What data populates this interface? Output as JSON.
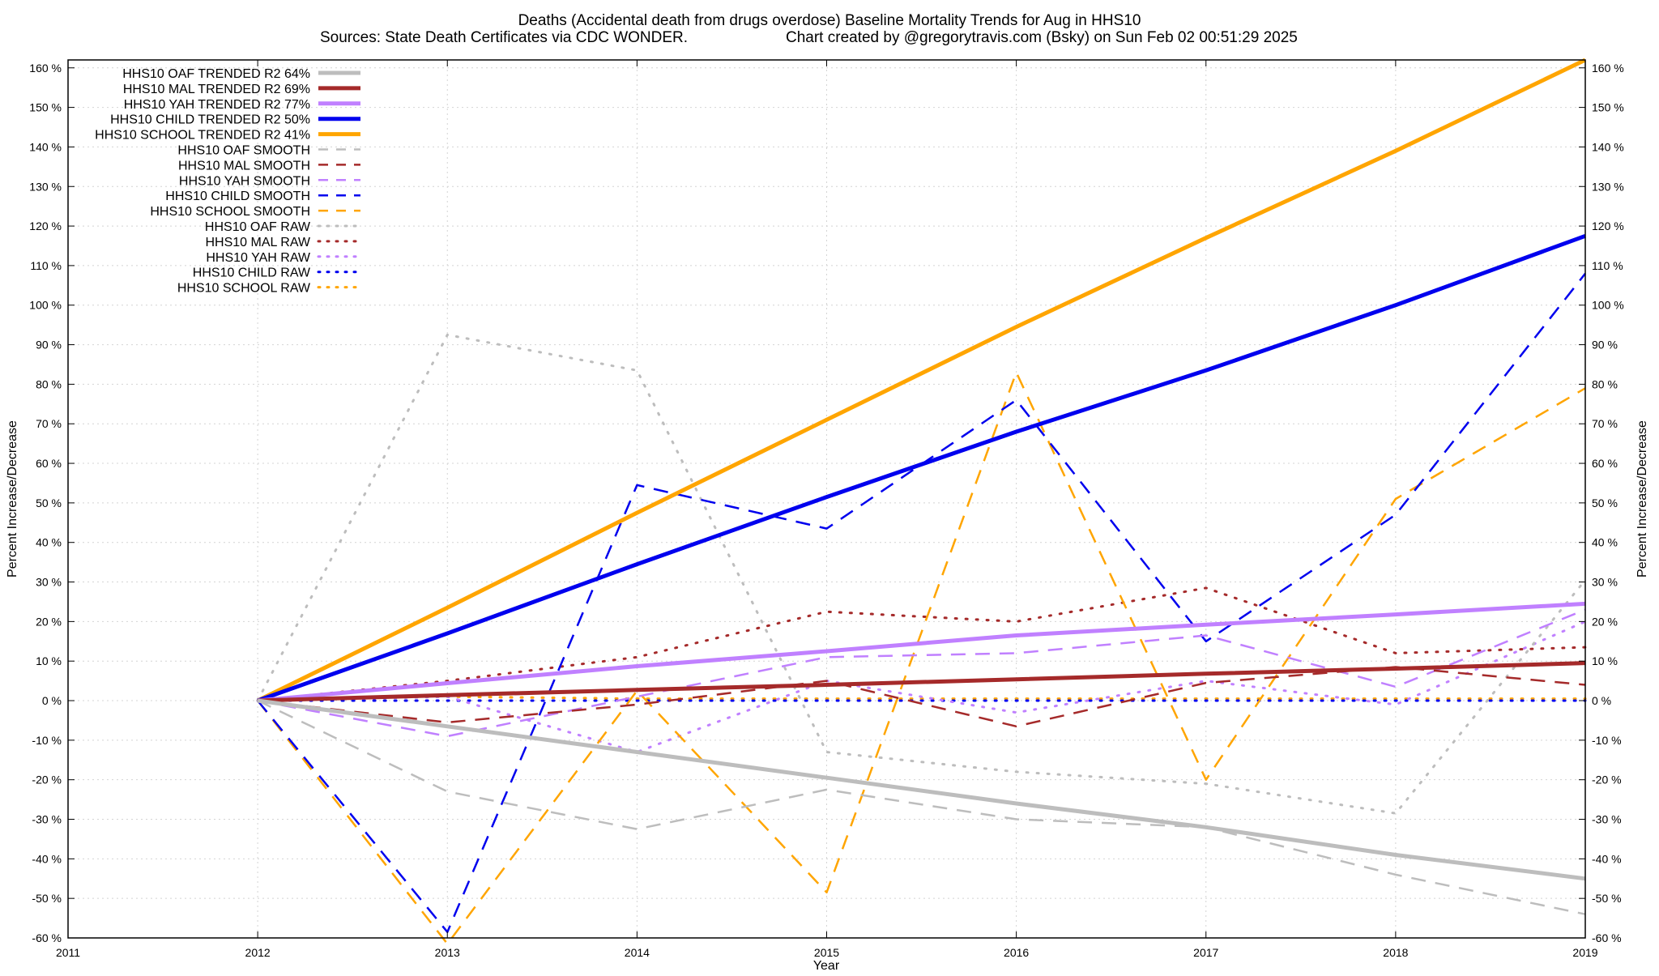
{
  "chart_data": {
    "type": "line",
    "title": "Deaths (Accidental death from drugs overdose)  Baseline Mortality Trends for Aug in HHS10",
    "subtitle_left": "Sources: State Death Certificates via CDC WONDER.",
    "subtitle_right": "Chart created by @gregorytravis.com (Bsky) on Sun Feb 02 00:51:29 2025",
    "xlabel": "Year",
    "ylabel": "Percent Increase/Decrease",
    "xlim": [
      2011,
      2019
    ],
    "ylim": [
      -60,
      162
    ],
    "x_ticks": [
      2011,
      2012,
      2013,
      2014,
      2015,
      2016,
      2017,
      2018,
      2019
    ],
    "x_tick_labels": [
      "2011",
      "2012",
      "2013",
      "2014",
      "2015",
      "2016",
      "2017",
      "2018",
      "2019"
    ],
    "y_ticks": [
      -60,
      -50,
      -40,
      -30,
      -20,
      -10,
      0,
      10,
      20,
      30,
      40,
      50,
      60,
      70,
      80,
      90,
      100,
      110,
      120,
      130,
      140,
      150,
      160
    ],
    "y_tick_labels": [
      "-60 %",
      "-50 %",
      "-40 %",
      "-30 %",
      "-20 %",
      "-10 %",
      "0 %",
      "10 %",
      "20 %",
      "30 %",
      "40 %",
      "50 %",
      "60 %",
      "70 %",
      "80 %",
      "90 %",
      "100 %",
      "110 %",
      "120 %",
      "130 %",
      "140 %",
      "150 %",
      "160 %"
    ],
    "grid": true,
    "legend_position": "top-left",
    "x": [
      2012,
      2013,
      2014,
      2015,
      2016,
      2017,
      2018,
      2019
    ],
    "series": [
      {
        "name": "HHS10 OAF TRENDED R2  64%",
        "style": "trend",
        "color": "#bdbdbd",
        "values": [
          0,
          -6.5,
          -13,
          -19.5,
          -26,
          -32,
          -39,
          -45
        ]
      },
      {
        "name": "HHS10 MAL TRENDED R2  69%",
        "style": "trend",
        "color": "#a52a2a",
        "values": [
          0,
          1.4,
          2.7,
          4.0,
          5.4,
          6.8,
          8.1,
          9.5
        ]
      },
      {
        "name": "HHS10 YAH TRENDED R2  77%",
        "style": "trend",
        "color": "#c080ff",
        "values": [
          0,
          4.4,
          8.7,
          12.5,
          16.5,
          19.2,
          21.8,
          24.5
        ]
      },
      {
        "name": "HHS10 CHILD TRENDED R2  50%",
        "style": "trend",
        "color": "#0000ee",
        "values": [
          0,
          17,
          34.5,
          51.5,
          68,
          83.5,
          100,
          117.5
        ]
      },
      {
        "name": "HHS10 SCHOOL TRENDED R2  41%",
        "style": "trend",
        "color": "#ffa500",
        "values": [
          0,
          23.5,
          47.5,
          71,
          94.5,
          117,
          139,
          162
        ]
      },
      {
        "name": "HHS10 OAF SMOOTH",
        "style": "smooth",
        "color": "#bdbdbd",
        "values": [
          0,
          -23,
          -32.5,
          -22.5,
          -30,
          -32,
          -44,
          -54
        ]
      },
      {
        "name": "HHS10 MAL SMOOTH",
        "style": "smooth",
        "color": "#a52a2a",
        "values": [
          0,
          -5.5,
          -1,
          5,
          -6.5,
          4.5,
          8.5,
          4
        ]
      },
      {
        "name": "HHS10 YAH SMOOTH",
        "style": "smooth",
        "color": "#c080ff",
        "values": [
          0,
          -9,
          1,
          11,
          12,
          16.5,
          3.5,
          23
        ]
      },
      {
        "name": "HHS10 CHILD SMOOTH",
        "style": "smooth",
        "color": "#0000ee",
        "values": [
          0,
          -58.5,
          54.5,
          43.5,
          76,
          15,
          47,
          108
        ]
      },
      {
        "name": "HHS10 SCHOOL SMOOTH",
        "style": "smooth",
        "color": "#ffa500",
        "values": [
          0,
          -61.5,
          2.5,
          -48.5,
          83,
          -20,
          51,
          79
        ]
      },
      {
        "name": "HHS10 OAF RAW",
        "style": "raw",
        "color": "#bdbdbd",
        "values": [
          0,
          92.5,
          83.5,
          -13,
          -18,
          -21,
          -28.5,
          30.5
        ]
      },
      {
        "name": "HHS10 MAL RAW",
        "style": "raw",
        "color": "#a52a2a",
        "values": [
          0,
          5,
          11,
          22.5,
          20,
          28.5,
          12,
          13.5
        ]
      },
      {
        "name": "HHS10 YAH RAW",
        "style": "raw",
        "color": "#c080ff",
        "values": [
          0,
          1,
          -13,
          5,
          -3,
          5,
          -1,
          20
        ]
      },
      {
        "name": "HHS10 CHILD RAW",
        "style": "raw",
        "color": "#0000ee",
        "values": [
          0,
          0,
          0,
          0,
          0,
          0,
          0,
          0
        ]
      },
      {
        "name": "HHS10 SCHOOL RAW",
        "style": "raw",
        "color": "#ffa500",
        "values": [
          0,
          1,
          0.5,
          0.5,
          0.5,
          0.5,
          0.5,
          0.5
        ]
      }
    ]
  }
}
